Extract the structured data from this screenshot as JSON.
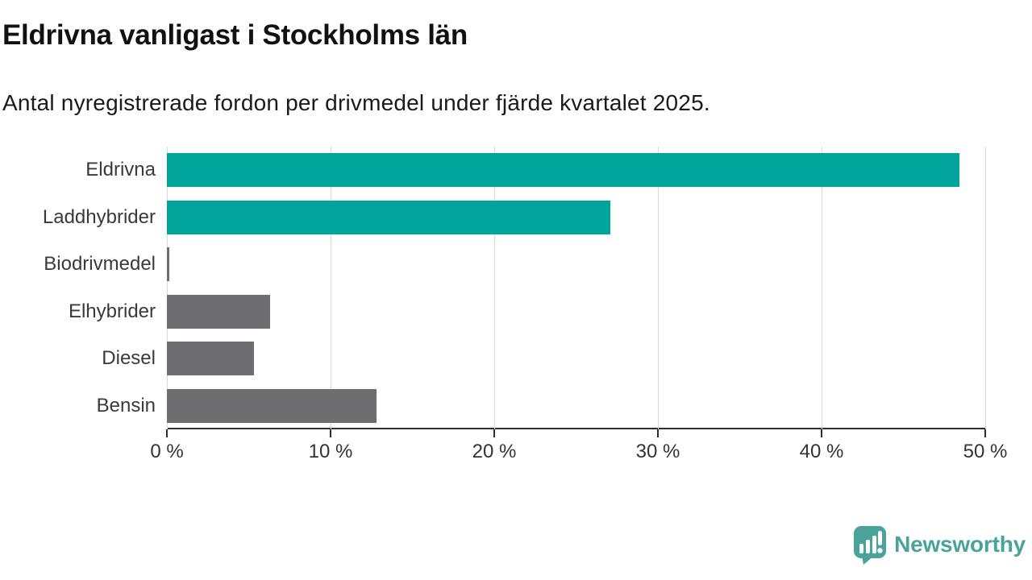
{
  "header": {
    "title": "Eldrivna vanligast i Stockholms län",
    "subtitle": "Antal nyregistrerade fordon per drivmedel under fjärde kvartalet 2025."
  },
  "chart_data": {
    "type": "bar",
    "orientation": "horizontal",
    "title": "Eldrivna vanligast i Stockholms län",
    "subtitle": "Antal nyregistrerade fordon per drivmedel under fjärde kvartalet 2025.",
    "categories": [
      "Eldrivna",
      "Laddhybrider",
      "Biodrivmedel",
      "Elhybrider",
      "Diesel",
      "Bensin"
    ],
    "values": [
      48.4,
      27.1,
      0.15,
      6.3,
      5.3,
      12.8
    ],
    "unit": "%",
    "bar_colors": [
      "#00a49b",
      "#00a49b",
      "#6e6e72",
      "#6e6e72",
      "#6e6e72",
      "#6e6e72"
    ],
    "xlim": [
      0,
      50
    ],
    "x_ticks": [
      0,
      10,
      20,
      30,
      40,
      50
    ],
    "x_tick_labels": [
      "0 %",
      "10 %",
      "20 %",
      "30 %",
      "40 %",
      "50 %"
    ],
    "grid": "vertical-gridlines-on",
    "legend": "none",
    "xlabel": "",
    "ylabel": ""
  },
  "branding": {
    "logo_text": "Newsworthy",
    "logo_color": "#4aa39b",
    "logo_icon": "speech-bubble-bar-chart-icon"
  },
  "colors": {
    "accent_teal": "#00a49b",
    "bar_gray": "#6e6e72",
    "title_text": "#111111",
    "axis_line": "#2e2e2e",
    "gridline": "#dadada"
  }
}
